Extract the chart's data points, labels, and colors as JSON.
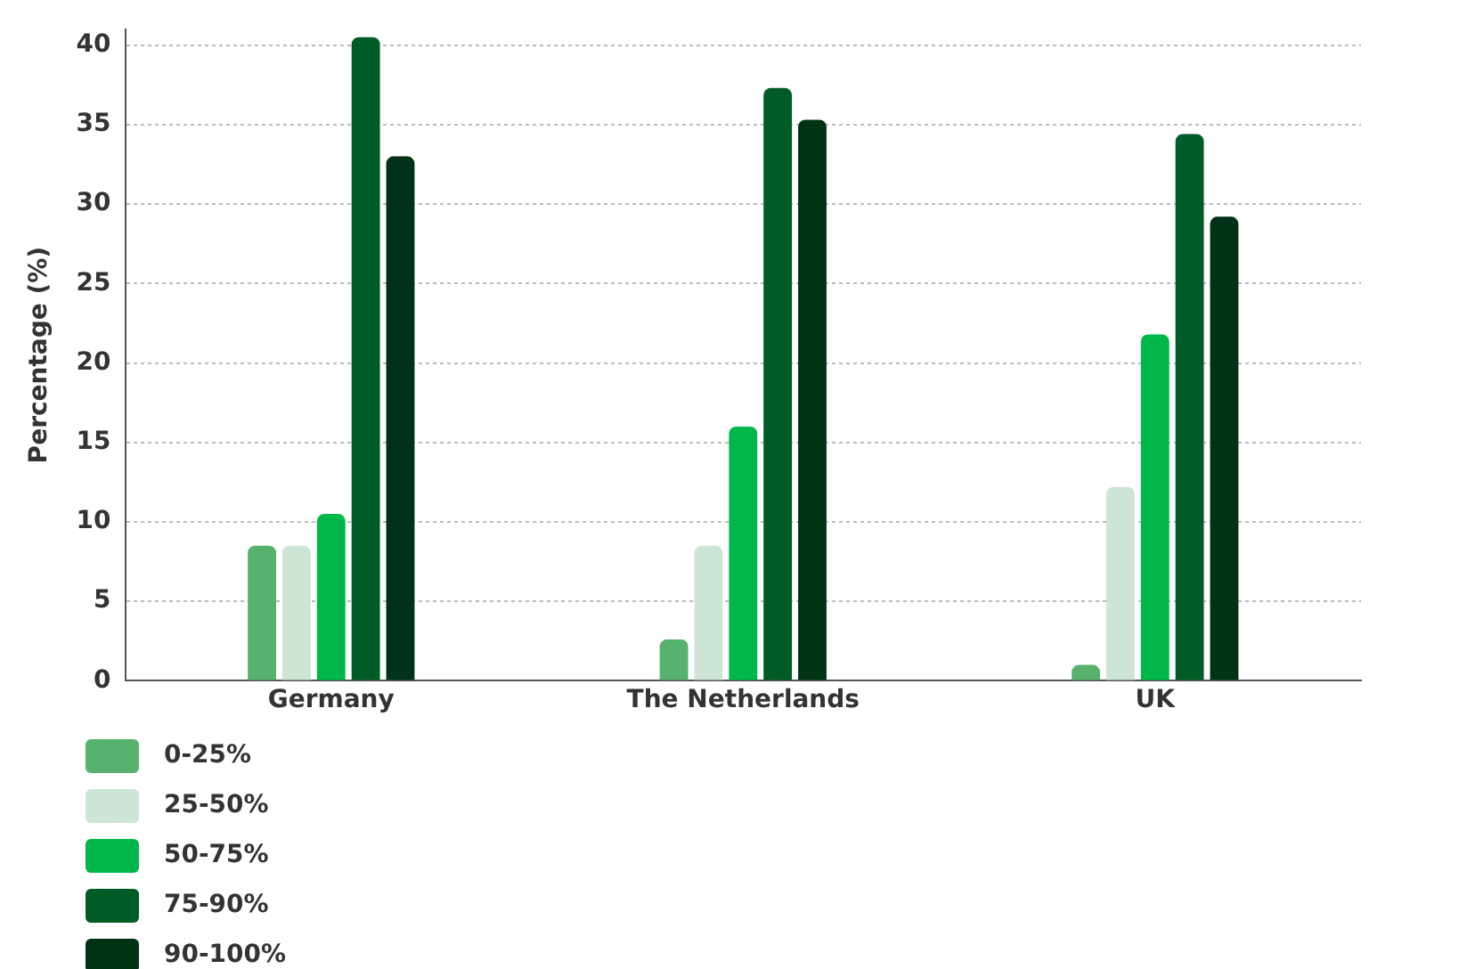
{
  "chart_data": {
    "type": "bar",
    "ylabel": "Percentage (%)",
    "categories": [
      "Germany",
      "The Netherlands",
      "UK"
    ],
    "series": [
      {
        "name": "0-25%",
        "color": "#57b26d",
        "values": [
          8.5,
          2.6,
          1
        ]
      },
      {
        "name": "25-50%",
        "color": "#cde5d4",
        "values": [
          8.5,
          8.5,
          12.2
        ]
      },
      {
        "name": "50-75%",
        "color": "#00b84a",
        "values": [
          10.5,
          16,
          21.8
        ]
      },
      {
        "name": "75-90%",
        "color": "#005c27",
        "values": [
          40.5,
          37.3,
          34.4
        ]
      },
      {
        "name": "90-100%",
        "color": "#003215",
        "values": [
          33,
          35.3,
          29.2
        ]
      }
    ],
    "ylim": [
      0,
      41
    ],
    "yticks": [
      0,
      5,
      10,
      15,
      20,
      25,
      30,
      35,
      40
    ],
    "grid": "y",
    "legend": "bottom left"
  }
}
